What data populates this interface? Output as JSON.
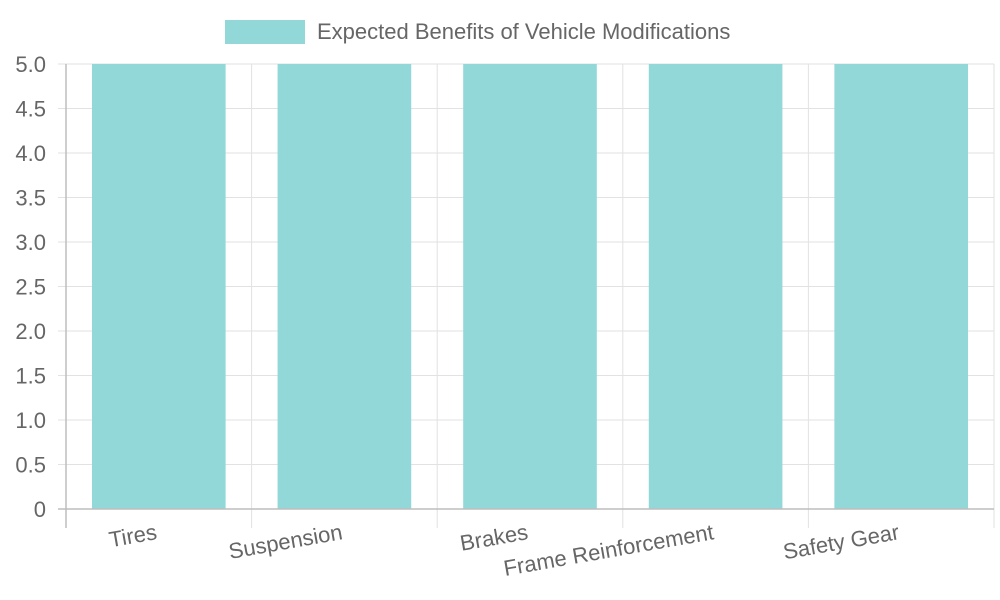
{
  "chart_data": {
    "type": "bar",
    "categories": [
      "Tires",
      "Suspension",
      "Brakes",
      "Frame Reinforcement",
      "Safety Gear"
    ],
    "series": [
      {
        "name": "Expected Benefits of Vehicle Modifications",
        "values": [
          5,
          5,
          5,
          5,
          5
        ],
        "color": "#92d8d8"
      }
    ],
    "ylim": [
      0,
      5
    ],
    "yticks": [
      "0",
      "0.5",
      "1.0",
      "1.5",
      "2.0",
      "2.5",
      "3.0",
      "3.5",
      "4.0",
      "4.5",
      "5.0"
    ],
    "grid": true,
    "legend_position": "top"
  }
}
